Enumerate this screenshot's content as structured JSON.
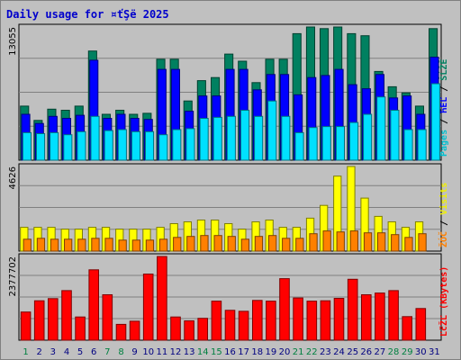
{
  "chart_data": {
    "type": "bar",
    "title": "Daily usage for ¤ťŞë 2025",
    "x": [
      "1",
      "2",
      "3",
      "4",
      "5",
      "6",
      "7",
      "8",
      "9",
      "10",
      "11",
      "12",
      "13",
      "14",
      "15",
      "16",
      "17",
      "18",
      "19",
      "20",
      "21",
      "22",
      "23",
      "24",
      "25",
      "26",
      "27",
      "28",
      "29",
      "30",
      "31"
    ],
    "weekend_color": "#008040",
    "weekday_color": "#000080",
    "weekend_days": [
      "1",
      "7",
      "8",
      "14",
      "15",
      "21",
      "22",
      "28",
      "29"
    ],
    "panels": [
      {
        "name": "hits-files-pages",
        "ymax_label": "13055",
        "ymax": 13055,
        "right_labels": [
          {
            "text": "Pages",
            "color": "#00c0d0"
          },
          {
            "text": " / ",
            "color": "#000000"
          },
          {
            "text": "ЋĚĽ",
            "color": "#0000ff"
          },
          {
            "text": " / ",
            "color": "#000000"
          },
          {
            "text": "ŠĹŽĚ",
            "color": "#008060"
          }
        ],
        "series": [
          {
            "name": "hits",
            "color": "#008060",
            "values": [
              5300,
              3900,
              5000,
              4900,
              5300,
              10700,
              4500,
              4900,
              4500,
              4600,
              9900,
              9900,
              5800,
              7800,
              8100,
              10400,
              9700,
              7600,
              9900,
              9900,
              12400,
              13055,
              12900,
              13055,
              12400,
              12200,
              8700,
              7200,
              6600,
              5300,
              12900
            ]
          },
          {
            "name": "files",
            "color": "#0000ff",
            "values": [
              4500,
              3600,
              4300,
              4100,
              4400,
              9800,
              4100,
              4500,
              4100,
              4000,
              8900,
              8900,
              4800,
              6300,
              6300,
              8900,
              8900,
              6900,
              8400,
              8400,
              6400,
              8100,
              8300,
              8900,
              7400,
              7000,
              8400,
              6100,
              6300,
              4500,
              10100
            ]
          },
          {
            "name": "pages",
            "color": "#00e0ff",
            "values": [
              2700,
              2600,
              2700,
              2500,
              2800,
              4300,
              2900,
              3000,
              2800,
              2800,
              2500,
              3000,
              3100,
              4100,
              4200,
              4300,
              4900,
              4300,
              5800,
              4300,
              2700,
              3200,
              3300,
              3300,
              3700,
              4500,
              6200,
              4900,
              3000,
              3000,
              7500
            ]
          }
        ]
      },
      {
        "name": "visits-sites",
        "ymax_label": "4626",
        "ymax": 4626,
        "right_labels": [
          {
            "text": "ŽÓČ",
            "color": "#ff8000"
          },
          {
            "text": " / ",
            "color": "#000000"
          },
          {
            "text": "Visits",
            "color": "#f0f000"
          },
          {
            "text": "",
            "color": "#000000"
          },
          {
            "text": "",
            "color": "#000000"
          }
        ],
        "series": [
          {
            "name": "visits",
            "color": "#ffff00",
            "values": [
              1300,
              1300,
              1300,
              1200,
              1200,
              1300,
              1300,
              1200,
              1200,
              1200,
              1300,
              1500,
              1600,
              1700,
              1700,
              1500,
              1200,
              1600,
              1700,
              1300,
              1300,
              1800,
              2500,
              4100,
              4626,
              2900,
              1900,
              1600,
              1300,
              1600,
              0
            ]
          },
          {
            "name": "sites",
            "color": "#ff8000",
            "values": [
              650,
              700,
              650,
              650,
              650,
              700,
              700,
              600,
              600,
              600,
              650,
              750,
              800,
              850,
              850,
              800,
              650,
              800,
              850,
              700,
              700,
              950,
              1100,
              1050,
              1100,
              1000,
              1000,
              900,
              750,
              950,
              0
            ]
          }
        ]
      },
      {
        "name": "kbytes",
        "ymax_label": "2377702",
        "ymax": 2377702,
        "right_labels": [
          {
            "text": "ĽčŽĽ (KBytes)",
            "color": "#ff0000"
          },
          {
            "text": "",
            "color": "#000000"
          },
          {
            "text": "",
            "color": "#000000"
          },
          {
            "text": "",
            "color": "#000000"
          },
          {
            "text": "",
            "color": "#000000"
          }
        ],
        "series": [
          {
            "name": "kbytes",
            "color": "#ff0000",
            "values": [
              800000,
              1120000,
              1180000,
              1410000,
              660000,
              2000000,
              1290000,
              450000,
              540000,
              1880000,
              2377702,
              660000,
              550000,
              620000,
              1110000,
              850000,
              820000,
              1130000,
              1110000,
              1750000,
              1200000,
              1110000,
              1120000,
              1190000,
              1730000,
              1290000,
              1340000,
              1410000,
              670000,
              900000,
              0
            ]
          }
        ]
      }
    ]
  }
}
